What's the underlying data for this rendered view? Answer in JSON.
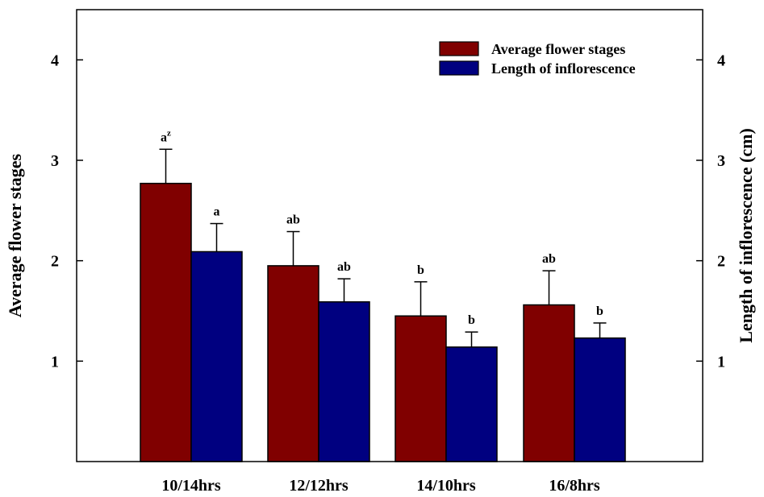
{
  "chart_data": {
    "type": "bar",
    "categories": [
      "10/14hrs",
      "12/12hrs",
      "14/10hrs",
      "16/8hrs"
    ],
    "series": [
      {
        "name": "Average flower stages",
        "color": "#800000",
        "values": [
          2.77,
          1.95,
          1.45,
          1.56
        ],
        "errors": [
          0.34,
          0.34,
          0.34,
          0.34
        ],
        "labels": [
          "a",
          "ab",
          "b",
          "ab"
        ],
        "label_superscripts": [
          "z",
          "",
          "",
          ""
        ]
      },
      {
        "name": "Length of inflorescence",
        "color": "#000080",
        "values": [
          2.09,
          1.59,
          1.14,
          1.23
        ],
        "errors": [
          0.28,
          0.23,
          0.15,
          0.15
        ],
        "labels": [
          "a",
          "ab",
          "b",
          "b"
        ],
        "label_superscripts": [
          "",
          "",
          "",
          ""
        ]
      }
    ],
    "ylabel": "Average flower stages",
    "y2label": "Length of inflorescence (cm)",
    "ylim": [
      0,
      4.5
    ],
    "yticks": [
      1,
      2,
      3,
      4
    ],
    "y2lim": [
      0,
      4.5
    ],
    "y2ticks": [
      1,
      2,
      3,
      4
    ],
    "legend_position": "top-right",
    "grid": false
  }
}
